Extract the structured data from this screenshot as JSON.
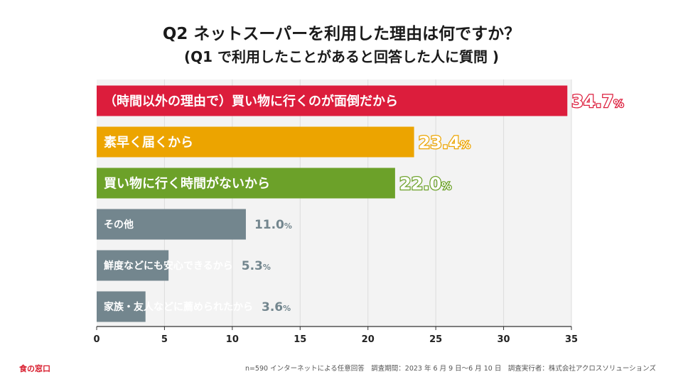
{
  "header": {
    "title": "Q2 ネットスーパーを利用した理由は何ですか？",
    "subtitle": "(Q1 で利用したことがあると回答した人に質問 )"
  },
  "chart_data": {
    "type": "bar",
    "orientation": "horizontal",
    "unit": "%",
    "xlim": [
      0,
      35
    ],
    "xticks": [
      "0",
      "5",
      "10",
      "15",
      "20",
      "25",
      "30",
      "35"
    ],
    "categories": [
      "（時間以外の理由で）買い物に行くのが面倒だから",
      "素早く届くから",
      "買い物に行く時間がないから",
      "その他",
      "鮮度などにも安心できるから",
      "家族・友人などに薦められたから"
    ],
    "values": [
      34.7,
      23.4,
      22.0,
      11.0,
      5.3,
      3.6
    ],
    "value_labels": [
      "34.7",
      "23.4",
      "22.0",
      "11.0",
      "5.3",
      "3.6"
    ],
    "bar_colors": [
      "#dc1d3c",
      "#eca400",
      "#6ca129",
      "#73868e",
      "#73868e",
      "#73868e"
    ],
    "grid": true
  },
  "footer": {
    "brand": "食の窓口",
    "note": "n=590 インターネットによる任意回答　調査期間：2023 年 6 月 9 日〜6 月 10 日　調査実行者：株式会社アクロスソリューションズ"
  }
}
